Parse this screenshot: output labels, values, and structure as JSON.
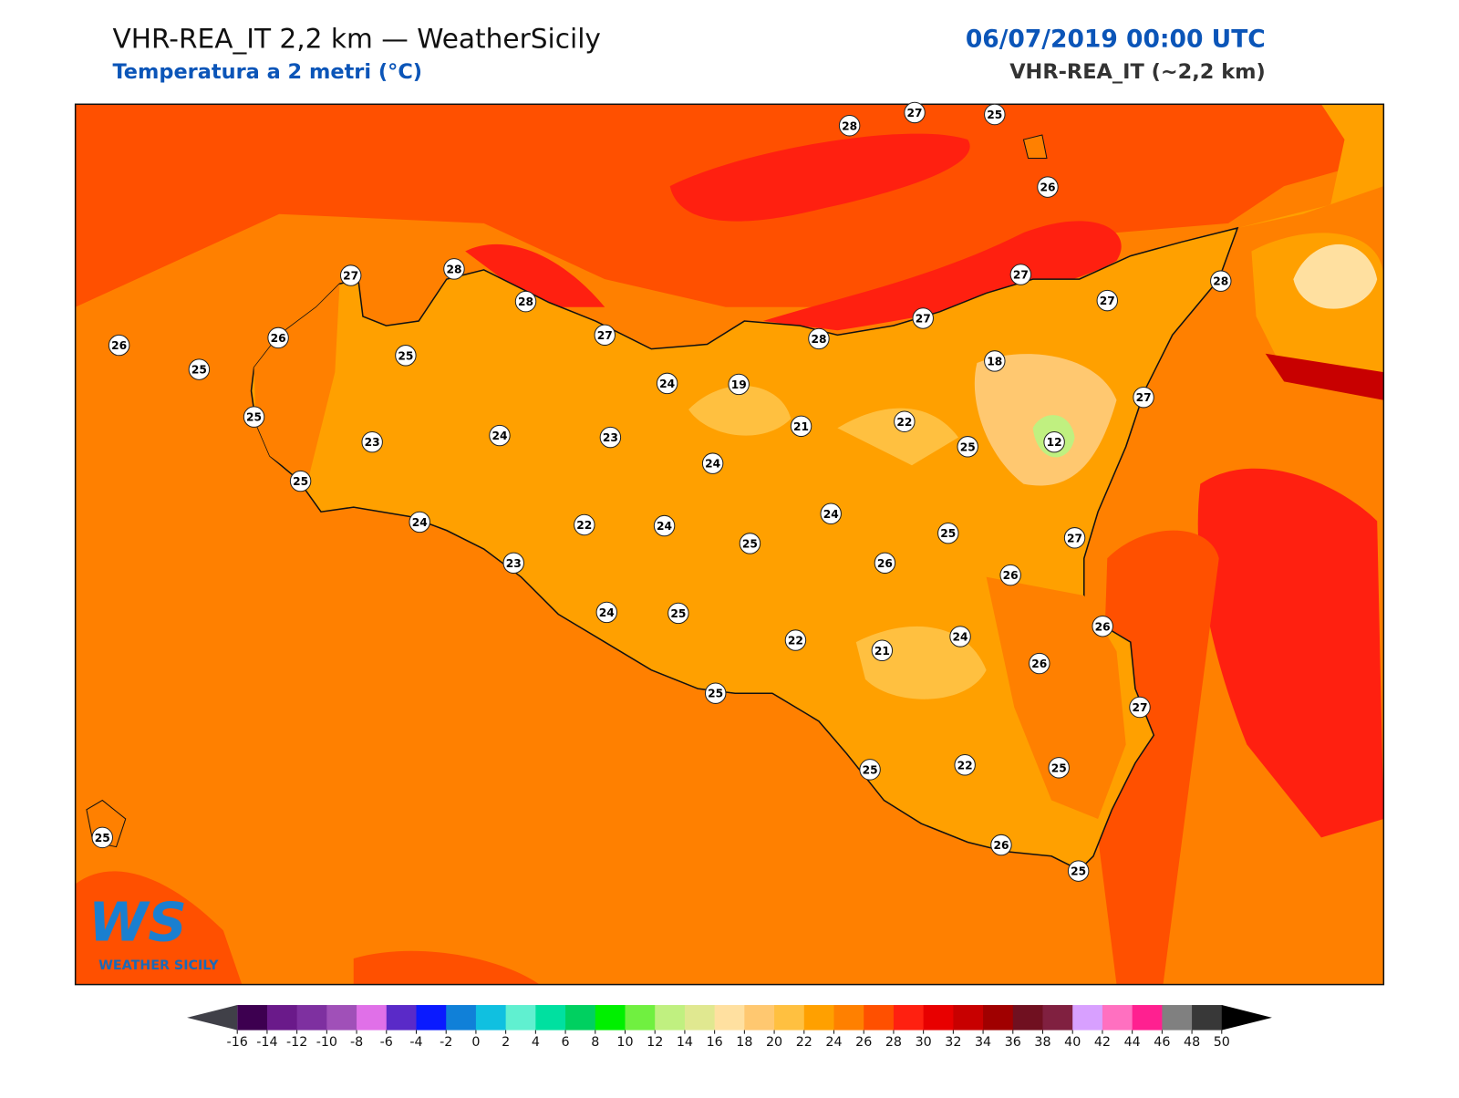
{
  "header": {
    "title": "VHR-REA_IT 2,2 km — WeatherSicily",
    "subtitle": "Temperatura a 2 metri (°C)",
    "datetime": "06/07/2019 00:00 UTC",
    "model": "VHR-REA_IT (~2,2 km)"
  },
  "stations": {
    "values": [
      28,
      27,
      25,
      26,
      27,
      28,
      28,
      26,
      26,
      25,
      25,
      27,
      28,
      27,
      27,
      27,
      28,
      18,
      24,
      19,
      25,
      23,
      24,
      23,
      21,
      22,
      25,
      12,
      27,
      24,
      25,
      24,
      22,
      24,
      25,
      24,
      25,
      27,
      23,
      26,
      26,
      24,
      25,
      22,
      21,
      24,
      26,
      26,
      25,
      27,
      25,
      22,
      25,
      25,
      26,
      25
    ]
  },
  "colorbar": {
    "ticks": [
      -16,
      -14,
      -12,
      -10,
      -8,
      -6,
      -4,
      -2,
      0,
      2,
      4,
      6,
      8,
      10,
      12,
      14,
      16,
      18,
      20,
      22,
      24,
      26,
      28,
      30,
      32,
      34,
      36,
      38,
      40,
      42,
      44,
      46,
      48,
      50
    ],
    "colors": [
      "#3d0050",
      "#6a1a8a",
      "#7e30a0",
      "#a050b8",
      "#e070e8",
      "#5a2ac8",
      "#0a1aff",
      "#1080d8",
      "#10c0e0",
      "#60f0d0",
      "#00e0a0",
      "#00d060",
      "#00f000",
      "#70f040",
      "#c0f080",
      "#e0e890",
      "#ffe0a0",
      "#ffc870",
      "#ffc040",
      "#ffa000",
      "#ff8000",
      "#ff5000",
      "#ff2010",
      "#e80000",
      "#c80000",
      "#a00000",
      "#701020",
      "#802040",
      "#d8a0ff",
      "#ff70c0",
      "#ff2090",
      "#808080",
      "#383838"
    ],
    "under_color": "#404048",
    "over_color": "#000000"
  },
  "logo": {
    "text": "WS",
    "subtext": "WEATHER SICILY"
  }
}
